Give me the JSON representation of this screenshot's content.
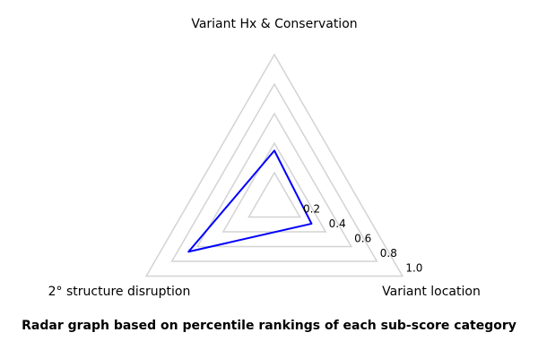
{
  "chart_data": {
    "type": "radar",
    "categories": [
      "Variant Hx & Conservation",
      "2° structure disruption",
      "Variant location"
    ],
    "values": [
      0.35,
      0.67,
      0.29
    ],
    "tick_values": [
      0.2,
      0.4,
      0.6,
      0.8,
      1.0
    ],
    "tick_labels": [
      "0.2",
      "0.4",
      "0.6",
      "0.8",
      "1.0"
    ],
    "rlim": [
      0,
      1.0
    ],
    "axes_count": 3,
    "grid_on": true,
    "legend": "none",
    "fill": false,
    "grid_color": "#d3d3d3",
    "line_color": "#0000ff",
    "text_color": "#000000",
    "caption": "Radar graph based on percentile rankings of each sub-score category"
  }
}
